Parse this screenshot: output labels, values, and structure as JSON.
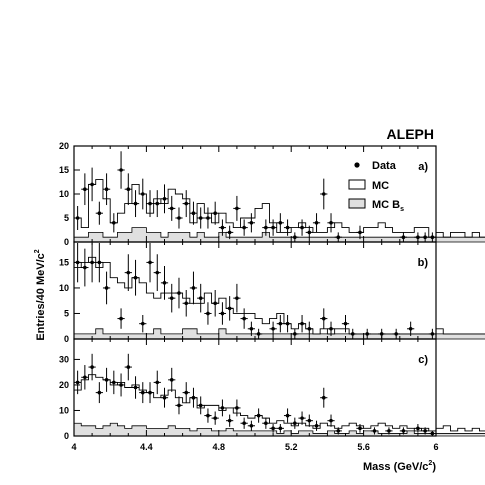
{
  "experiment_label": "ALEPH",
  "axes": {
    "xlabel_main": "Mass (GeV/c",
    "xlabel_exp": "2",
    "xlabel_close": ")",
    "ylabel_main": "Entries/40 MeV/c",
    "ylabel_exp": "2"
  },
  "legend": {
    "data": "Data",
    "mc": "MC",
    "mcbs_main": "MC B",
    "mcbs_sub": "s"
  },
  "x_ticks": [
    "4",
    "4.4",
    "4.8",
    "5.2",
    "5.6",
    "6"
  ],
  "panel_labels": [
    "a)",
    "b)",
    "c)"
  ],
  "y_ticks": {
    "a": [
      "0",
      "5",
      "10",
      "15",
      "20"
    ],
    "b": [
      "0",
      "5",
      "10",
      "15"
    ],
    "c": [
      "0",
      "10",
      "20",
      "30"
    ]
  },
  "colors": {
    "mc_bs_fill": "#e0e0e0",
    "line": "#000000"
  },
  "chart_data": [
    {
      "type": "histogram",
      "panel": "a)",
      "xlim": [
        4.0,
        6.0
      ],
      "ylim": [
        0,
        20
      ],
      "bin_width": 0.04,
      "x_start": 4.0,
      "mc": [
        5,
        3,
        12,
        13,
        9,
        4,
        6,
        8,
        12,
        10,
        6,
        9,
        8,
        11,
        10,
        9,
        4,
        8,
        6,
        4,
        6,
        4,
        3,
        5,
        5,
        7,
        8,
        4,
        2,
        2,
        3,
        4,
        3,
        2,
        2,
        3,
        4,
        3,
        2,
        2,
        3,
        3,
        4,
        3,
        2,
        2,
        2,
        3,
        3,
        1,
        2,
        1,
        2,
        2,
        1,
        2,
        1,
        2,
        1,
        2,
        1,
        1,
        1,
        1,
        1,
        1,
        1,
        1,
        1,
        1,
        1,
        1,
        1,
        1,
        1,
        1,
        1,
        1,
        1,
        1
      ],
      "mc_bs": [
        1,
        1,
        2,
        2,
        1,
        1,
        2,
        2,
        3,
        3,
        2,
        2,
        1,
        2,
        2,
        2,
        1,
        2,
        1,
        1,
        2,
        1,
        1,
        1,
        1,
        1,
        2,
        1,
        1,
        1,
        1,
        1,
        1,
        1,
        1,
        1,
        1,
        1,
        1,
        1,
        1,
        1,
        1,
        1,
        1,
        1,
        1,
        1,
        1,
        1,
        1,
        1,
        1,
        1,
        1,
        1,
        1,
        1,
        1,
        1,
        1,
        1,
        1,
        1,
        1,
        1,
        1,
        1,
        1,
        1,
        1,
        1,
        1,
        1,
        1,
        1,
        1,
        1,
        1,
        1
      ],
      "data": [
        {
          "x": 4.02,
          "y": 5,
          "e": 2.5
        },
        {
          "x": 4.06,
          "y": 11,
          "e": 3.3
        },
        {
          "x": 4.1,
          "y": 12,
          "e": 3.5
        },
        {
          "x": 4.14,
          "y": 6,
          "e": 2.4
        },
        {
          "x": 4.18,
          "y": 11,
          "e": 3.3
        },
        {
          "x": 4.22,
          "y": 4,
          "e": 2
        },
        {
          "x": 4.26,
          "y": 15,
          "e": 3.9
        },
        {
          "x": 4.3,
          "y": 11,
          "e": 3.3
        },
        {
          "x": 4.34,
          "y": 8,
          "e": 2.8
        },
        {
          "x": 4.38,
          "y": 10,
          "e": 3.2
        },
        {
          "x": 4.42,
          "y": 8,
          "e": 2.8
        },
        {
          "x": 4.46,
          "y": 8,
          "e": 2.8
        },
        {
          "x": 4.5,
          "y": 9,
          "e": 3
        },
        {
          "x": 4.54,
          "y": 7,
          "e": 2.6
        },
        {
          "x": 4.58,
          "y": 5,
          "e": 2.2
        },
        {
          "x": 4.62,
          "y": 8,
          "e": 2.8
        },
        {
          "x": 4.66,
          "y": 6,
          "e": 2.4
        },
        {
          "x": 4.7,
          "y": 5,
          "e": 2.2
        },
        {
          "x": 4.74,
          "y": 5,
          "e": 2.2
        },
        {
          "x": 4.78,
          "y": 6,
          "e": 2.4
        },
        {
          "x": 4.82,
          "y": 3,
          "e": 1.7
        },
        {
          "x": 4.86,
          "y": 2,
          "e": 1.4
        },
        {
          "x": 4.9,
          "y": 7,
          "e": 2.6
        },
        {
          "x": 4.94,
          "y": 3,
          "e": 1.7
        },
        {
          "x": 4.98,
          "y": 4,
          "e": 2
        },
        {
          "x": 5.06,
          "y": 3,
          "e": 1.7
        },
        {
          "x": 5.1,
          "y": 3,
          "e": 1.7
        },
        {
          "x": 5.14,
          "y": 4,
          "e": 2
        },
        {
          "x": 5.18,
          "y": 3,
          "e": 1.7
        },
        {
          "x": 5.22,
          "y": 1,
          "e": 1
        },
        {
          "x": 5.26,
          "y": 3,
          "e": 1.7
        },
        {
          "x": 5.3,
          "y": 2,
          "e": 1.4
        },
        {
          "x": 5.34,
          "y": 4,
          "e": 2
        },
        {
          "x": 5.38,
          "y": 10,
          "e": 3.2
        },
        {
          "x": 5.42,
          "y": 4,
          "e": 2
        },
        {
          "x": 5.46,
          "y": 1,
          "e": 1
        },
        {
          "x": 5.58,
          "y": 2,
          "e": 1.4
        },
        {
          "x": 5.82,
          "y": 1,
          "e": 1
        },
        {
          "x": 5.9,
          "y": 1,
          "e": 1
        },
        {
          "x": 5.94,
          "y": 1,
          "e": 1
        },
        {
          "x": 5.98,
          "y": 1,
          "e": 1
        }
      ]
    },
    {
      "type": "histogram",
      "panel": "b)",
      "xlim": [
        4.0,
        6.0
      ],
      "ylim": [
        0,
        19
      ],
      "bin_width": 0.04,
      "x_start": 4.0,
      "mc": [
        14,
        15,
        16,
        14,
        15,
        12,
        11,
        10,
        12,
        11,
        9,
        8,
        9,
        9,
        9,
        8,
        7,
        7,
        9,
        7,
        8,
        6,
        5,
        5,
        5,
        4,
        3,
        4,
        5,
        3,
        2,
        3,
        2,
        1,
        2,
        1,
        2,
        2,
        1,
        1,
        1,
        1,
        1,
        1,
        1,
        1,
        1,
        1,
        1,
        1,
        2,
        1,
        1,
        1,
        1,
        1,
        1,
        1,
        1,
        1,
        1,
        1,
        1,
        1,
        1,
        1,
        1,
        1,
        1,
        1,
        1,
        1,
        1,
        1,
        1,
        1,
        1,
        1,
        1,
        1
      ],
      "mc_bs": [
        1,
        1,
        1,
        2,
        1,
        1,
        1,
        1,
        1,
        1,
        1,
        2,
        1,
        1,
        1,
        2,
        2,
        1,
        1,
        1,
        2,
        1,
        1,
        1,
        1,
        1,
        1,
        1,
        1,
        1,
        1,
        1,
        1,
        1,
        1,
        1,
        1,
        1,
        1,
        1,
        1,
        1,
        1,
        1,
        1,
        1,
        1,
        1,
        1,
        1,
        1,
        1,
        1,
        1,
        1,
        1,
        1,
        1,
        1,
        1,
        1,
        1,
        1,
        1,
        1,
        1,
        1,
        1,
        1,
        1,
        1,
        1,
        1,
        1,
        1,
        1,
        1,
        1,
        1,
        1
      ],
      "data": [
        {
          "x": 4.02,
          "y": 15,
          "e": 3.9
        },
        {
          "x": 4.06,
          "y": 14,
          "e": 3.7
        },
        {
          "x": 4.1,
          "y": 15,
          "e": 3.9
        },
        {
          "x": 4.14,
          "y": 15,
          "e": 3.9
        },
        {
          "x": 4.18,
          "y": 10,
          "e": 3.2
        },
        {
          "x": 4.26,
          "y": 4,
          "e": 2
        },
        {
          "x": 4.3,
          "y": 13,
          "e": 3.6
        },
        {
          "x": 4.34,
          "y": 12,
          "e": 3.5
        },
        {
          "x": 4.38,
          "y": 3,
          "e": 1.7
        },
        {
          "x": 4.42,
          "y": 15,
          "e": 3.9
        },
        {
          "x": 4.46,
          "y": 13,
          "e": 3.6
        },
        {
          "x": 4.5,
          "y": 11,
          "e": 3.3
        },
        {
          "x": 4.54,
          "y": 8,
          "e": 2.8
        },
        {
          "x": 4.58,
          "y": 9,
          "e": 3
        },
        {
          "x": 4.62,
          "y": 7,
          "e": 2.6
        },
        {
          "x": 4.66,
          "y": 10,
          "e": 3.2
        },
        {
          "x": 4.7,
          "y": 8,
          "e": 2.8
        },
        {
          "x": 4.74,
          "y": 5,
          "e": 2.2
        },
        {
          "x": 4.78,
          "y": 7,
          "e": 2.6
        },
        {
          "x": 4.82,
          "y": 5,
          "e": 2.2
        },
        {
          "x": 4.86,
          "y": 6,
          "e": 2.4
        },
        {
          "x": 4.9,
          "y": 8,
          "e": 2.8
        },
        {
          "x": 4.94,
          "y": 4,
          "e": 2
        },
        {
          "x": 4.98,
          "y": 2,
          "e": 1.4
        },
        {
          "x": 5.02,
          "y": 1,
          "e": 1
        },
        {
          "x": 5.1,
          "y": 2,
          "e": 1.4
        },
        {
          "x": 5.14,
          "y": 3,
          "e": 1.7
        },
        {
          "x": 5.18,
          "y": 3,
          "e": 1.7
        },
        {
          "x": 5.22,
          "y": 1,
          "e": 1
        },
        {
          "x": 5.26,
          "y": 3,
          "e": 1.7
        },
        {
          "x": 5.3,
          "y": 2,
          "e": 1.4
        },
        {
          "x": 5.38,
          "y": 4,
          "e": 2
        },
        {
          "x": 5.42,
          "y": 2,
          "e": 1.4
        },
        {
          "x": 5.5,
          "y": 3,
          "e": 1.7
        },
        {
          "x": 5.54,
          "y": 1,
          "e": 1
        },
        {
          "x": 5.62,
          "y": 1,
          "e": 1
        },
        {
          "x": 5.7,
          "y": 1,
          "e": 1
        },
        {
          "x": 5.78,
          "y": 1,
          "e": 1
        },
        {
          "x": 5.86,
          "y": 2,
          "e": 1.4
        },
        {
          "x": 5.98,
          "y": 1,
          "e": 1
        }
      ]
    },
    {
      "type": "histogram",
      "panel": "c)",
      "xlim": [
        4.0,
        6.0
      ],
      "ylim": [
        0,
        38
      ],
      "bin_width": 0.04,
      "x_start": 4.0,
      "mc": [
        18,
        22,
        24,
        23,
        22,
        20,
        21,
        19,
        20,
        18,
        17,
        15,
        16,
        18,
        15,
        13,
        15,
        11,
        12,
        12,
        10,
        11,
        9,
        8,
        7,
        8,
        7,
        5,
        6,
        5,
        4,
        5,
        4,
        3,
        5,
        4,
        3,
        4,
        5,
        4,
        3,
        4,
        5,
        4,
        3,
        4,
        3,
        2,
        3,
        2,
        3,
        4,
        2,
        3,
        2,
        3,
        2,
        2,
        2,
        1,
        3,
        2,
        1,
        2,
        1,
        1,
        1,
        1,
        1,
        1,
        1,
        1,
        1,
        1,
        1,
        1,
        1,
        1,
        1,
        1
      ],
      "mc_bs": [
        5,
        4,
        4,
        3,
        4,
        5,
        4,
        3,
        4,
        4,
        3,
        3,
        3,
        4,
        3,
        3,
        2,
        3,
        3,
        2,
        2,
        3,
        2,
        2,
        2,
        2,
        2,
        2,
        1,
        2,
        1,
        2,
        2,
        1,
        1,
        2,
        1,
        1,
        2,
        1,
        2,
        2,
        1,
        1,
        1,
        1,
        2,
        1,
        1,
        1,
        1,
        1,
        1,
        1,
        1,
        1,
        1,
        1,
        1,
        1,
        1,
        1,
        1,
        1,
        1,
        1,
        1,
        1,
        1,
        1,
        1,
        1,
        1,
        1,
        1,
        1,
        1,
        1,
        1,
        1
      ],
      "data": [
        {
          "x": 4.02,
          "y": 21,
          "e": 4.6
        },
        {
          "x": 4.06,
          "y": 23,
          "e": 4.8
        },
        {
          "x": 4.1,
          "y": 27,
          "e": 5.2
        },
        {
          "x": 4.14,
          "y": 17,
          "e": 4.1
        },
        {
          "x": 4.18,
          "y": 22,
          "e": 4.7
        },
        {
          "x": 4.22,
          "y": 21,
          "e": 4.6
        },
        {
          "x": 4.26,
          "y": 20,
          "e": 4.5
        },
        {
          "x": 4.3,
          "y": 27,
          "e": 5.2
        },
        {
          "x": 4.34,
          "y": 19,
          "e": 4.4
        },
        {
          "x": 4.38,
          "y": 17,
          "e": 4.1
        },
        {
          "x": 4.42,
          "y": 17,
          "e": 4.1
        },
        {
          "x": 4.46,
          "y": 21,
          "e": 4.6
        },
        {
          "x": 4.5,
          "y": 15,
          "e": 3.9
        },
        {
          "x": 4.54,
          "y": 22,
          "e": 4.7
        },
        {
          "x": 4.58,
          "y": 12,
          "e": 3.5
        },
        {
          "x": 4.62,
          "y": 17,
          "e": 4.1
        },
        {
          "x": 4.66,
          "y": 15,
          "e": 3.9
        },
        {
          "x": 4.7,
          "y": 12,
          "e": 3.5
        },
        {
          "x": 4.74,
          "y": 8,
          "e": 2.8
        },
        {
          "x": 4.78,
          "y": 7,
          "e": 2.6
        },
        {
          "x": 4.82,
          "y": 11,
          "e": 3.3
        },
        {
          "x": 4.86,
          "y": 6,
          "e": 2.4
        },
        {
          "x": 4.9,
          "y": 11,
          "e": 3.3
        },
        {
          "x": 4.94,
          "y": 5,
          "e": 2.2
        },
        {
          "x": 4.98,
          "y": 4,
          "e": 2
        },
        {
          "x": 5.02,
          "y": 8,
          "e": 2.8
        },
        {
          "x": 5.06,
          "y": 5,
          "e": 2.2
        },
        {
          "x": 5.1,
          "y": 3,
          "e": 1.7
        },
        {
          "x": 5.14,
          "y": 3,
          "e": 1.7
        },
        {
          "x": 5.18,
          "y": 8,
          "e": 2.8
        },
        {
          "x": 5.22,
          "y": 5,
          "e": 2.2
        },
        {
          "x": 5.26,
          "y": 7,
          "e": 2.6
        },
        {
          "x": 5.3,
          "y": 6,
          "e": 2.4
        },
        {
          "x": 5.34,
          "y": 4,
          "e": 2
        },
        {
          "x": 5.38,
          "y": 15,
          "e": 3.9
        },
        {
          "x": 5.42,
          "y": 6,
          "e": 2.4
        },
        {
          "x": 5.46,
          "y": 2,
          "e": 1.4
        },
        {
          "x": 5.58,
          "y": 3,
          "e": 1.7
        },
        {
          "x": 5.66,
          "y": 2,
          "e": 1.4
        },
        {
          "x": 5.74,
          "y": 2,
          "e": 1.4
        },
        {
          "x": 5.82,
          "y": 2,
          "e": 1.4
        },
        {
          "x": 5.9,
          "y": 3,
          "e": 1.7
        },
        {
          "x": 5.94,
          "y": 2,
          "e": 1.4
        },
        {
          "x": 5.98,
          "y": 1,
          "e": 1
        }
      ]
    }
  ]
}
